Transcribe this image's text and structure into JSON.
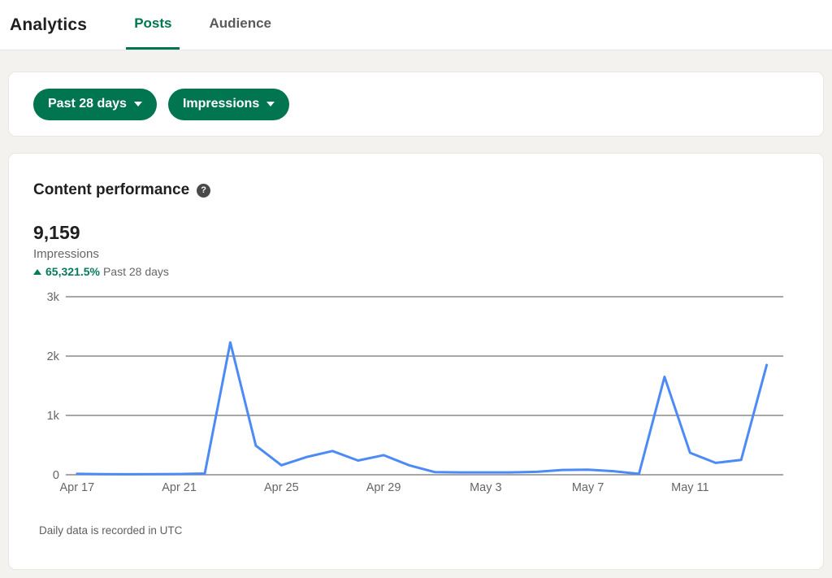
{
  "header": {
    "title": "Analytics",
    "tabs": [
      {
        "label": "Posts",
        "active": true
      },
      {
        "label": "Audience",
        "active": false
      }
    ]
  },
  "filters": {
    "date_range_label": "Past 28 days",
    "metric_label": "Impressions"
  },
  "content": {
    "section_title": "Content performance",
    "help_glyph": "?",
    "metric_value": "9,159",
    "metric_label": "Impressions",
    "change_value": "65,321.5%",
    "change_period": "Past 28 days",
    "footnote": "Daily data is recorded in UTC"
  },
  "colors": {
    "accent_green": "#01754f",
    "change_green": "#087a5c",
    "line_blue": "#4c8bf5",
    "grid_gray": "#8a8a8a",
    "axis_text": "#666666",
    "page_bg": "#f3f2ee",
    "card_bg": "#ffffff"
  },
  "chart_data": {
    "type": "line",
    "title": "Content performance",
    "series_name": "Impressions",
    "x": [
      "Apr 17",
      "Apr 18",
      "Apr 19",
      "Apr 20",
      "Apr 21",
      "Apr 22",
      "Apr 23",
      "Apr 24",
      "Apr 25",
      "Apr 26",
      "Apr 27",
      "Apr 28",
      "Apr 29",
      "Apr 30",
      "May 1",
      "May 2",
      "May 3",
      "May 4",
      "May 5",
      "May 6",
      "May 7",
      "May 8",
      "May 9",
      "May 10",
      "May 11",
      "May 12",
      "May 13",
      "May 14"
    ],
    "values": [
      15,
      10,
      8,
      10,
      12,
      20,
      2230,
      490,
      160,
      300,
      400,
      240,
      330,
      160,
      45,
      40,
      39,
      40,
      50,
      80,
      85,
      60,
      15,
      1650,
      370,
      200,
      250,
      1850
    ],
    "total": 9159,
    "x_tick_indices": [
      0,
      4,
      8,
      12,
      16,
      20,
      24
    ],
    "x_tick_labels": [
      "Apr 17",
      "Apr 21",
      "Apr 25",
      "Apr 29",
      "May 3",
      "May 7",
      "May 11"
    ],
    "y_ticks": [
      {
        "label": "0",
        "value": 0
      },
      {
        "label": "1k",
        "value": 1000
      },
      {
        "label": "2k",
        "value": 2000
      },
      {
        "label": "3k",
        "value": 3000
      }
    ],
    "ylim": [
      0,
      3000
    ],
    "grid": true,
    "legend": false,
    "xlabel": "",
    "ylabel": ""
  }
}
